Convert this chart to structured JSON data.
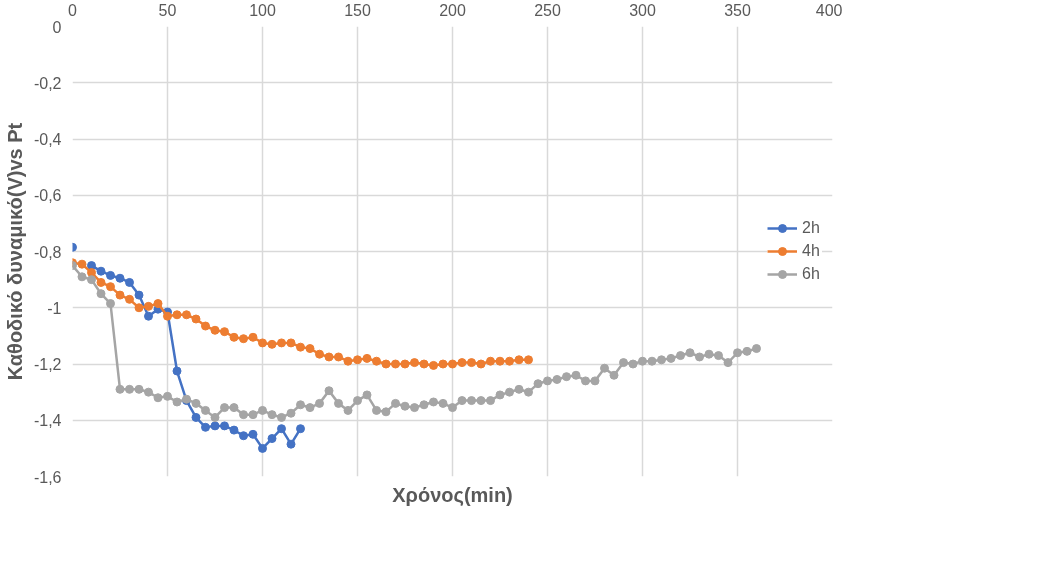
{
  "chart_data": {
    "type": "line",
    "xlabel": "Χρόνος(min)",
    "ylabel": "Καθοδικό δυναμικό(V)vs Pt",
    "xlim": [
      0,
      400
    ],
    "xticks": [
      0,
      50,
      100,
      150,
      200,
      250,
      300,
      350,
      400
    ],
    "ylim": [
      -1.6,
      0
    ],
    "yticks": [
      {
        "value": 0,
        "label": "0"
      },
      {
        "value": -0.2,
        "label": "-0,2"
      },
      {
        "value": -0.4,
        "label": "-0,4"
      },
      {
        "value": -0.6,
        "label": "-0,6"
      },
      {
        "value": -0.8,
        "label": "-0,8"
      },
      {
        "value": -1,
        "label": "-1"
      },
      {
        "value": -1.2,
        "label": "-1,2"
      },
      {
        "value": -1.4,
        "label": "-1,4"
      },
      {
        "value": -1.6,
        "label": "-1,6"
      }
    ],
    "grid": true,
    "legend": "right",
    "marker": "circle",
    "line_style": "solid",
    "series": [
      {
        "name": "2h",
        "color": "#4472c4",
        "x": [
          0,
          5,
          10,
          15,
          20,
          25,
          30,
          35,
          40,
          45,
          50,
          55,
          60,
          65,
          70,
          75,
          80,
          85,
          90,
          95,
          100,
          105,
          110,
          115,
          120
        ],
        "values": [
          -0.785,
          null,
          -0.85,
          -0.87,
          -0.885,
          -0.895,
          -0.91,
          -0.955,
          -1.03,
          -1.005,
          -1.015,
          -1.225,
          -1.33,
          -1.39,
          -1.425,
          -1.42,
          -1.42,
          -1.435,
          -1.455,
          -1.45,
          -1.5,
          -1.465,
          -1.43,
          -1.485,
          -1.43
        ]
      },
      {
        "name": "4h",
        "color": "#ed7d31",
        "x": [
          0,
          5,
          10,
          15,
          20,
          25,
          30,
          35,
          40,
          45,
          50,
          55,
          60,
          65,
          70,
          75,
          80,
          85,
          90,
          95,
          100,
          105,
          110,
          115,
          120,
          125,
          130,
          135,
          140,
          145,
          150,
          155,
          160,
          165,
          170,
          175,
          180,
          185,
          190,
          195,
          200,
          205,
          210,
          215,
          220,
          225,
          230,
          235,
          240
        ],
        "values": [
          -0.84,
          -0.845,
          -0.875,
          -0.91,
          -0.925,
          -0.955,
          -0.97,
          -1.0,
          -0.995,
          -0.985,
          -1.03,
          -1.025,
          -1.025,
          -1.04,
          -1.065,
          -1.08,
          -1.085,
          -1.105,
          -1.11,
          -1.105,
          -1.125,
          -1.13,
          -1.125,
          -1.125,
          -1.14,
          -1.145,
          -1.165,
          -1.175,
          -1.175,
          -1.19,
          -1.185,
          -1.18,
          -1.19,
          -1.2,
          -1.2,
          -1.2,
          -1.195,
          -1.2,
          -1.205,
          -1.2,
          -1.2,
          -1.195,
          -1.195,
          -1.2,
          -1.19,
          -1.19,
          -1.19,
          -1.185,
          -1.185
        ]
      },
      {
        "name": "6h",
        "color": "#a5a5a5",
        "x": [
          0,
          5,
          10,
          15,
          20,
          25,
          30,
          35,
          40,
          45,
          50,
          55,
          60,
          65,
          70,
          75,
          80,
          85,
          90,
          95,
          100,
          105,
          110,
          115,
          120,
          125,
          130,
          135,
          140,
          145,
          150,
          155,
          160,
          165,
          170,
          175,
          180,
          185,
          190,
          195,
          200,
          205,
          210,
          215,
          220,
          225,
          230,
          235,
          240,
          245,
          250,
          255,
          260,
          265,
          270,
          275,
          280,
          285,
          290,
          295,
          300,
          305,
          310,
          315,
          320,
          325,
          330,
          335,
          340,
          345,
          350,
          355,
          360
        ],
        "values": [
          -0.85,
          -0.89,
          -0.9,
          -0.95,
          -0.985,
          -1.29,
          -1.29,
          -1.29,
          -1.3,
          -1.32,
          -1.315,
          -1.335,
          -1.325,
          -1.34,
          -1.365,
          -1.39,
          -1.355,
          -1.355,
          -1.38,
          -1.38,
          -1.365,
          -1.38,
          -1.39,
          -1.375,
          -1.345,
          -1.355,
          -1.34,
          -1.295,
          -1.34,
          -1.365,
          -1.33,
          -1.31,
          -1.365,
          -1.37,
          -1.34,
          -1.35,
          -1.355,
          -1.345,
          -1.335,
          -1.34,
          -1.355,
          -1.33,
          -1.33,
          -1.33,
          -1.33,
          -1.31,
          -1.3,
          -1.29,
          -1.3,
          -1.27,
          -1.26,
          -1.255,
          -1.245,
          -1.24,
          -1.26,
          -1.26,
          -1.215,
          -1.24,
          -1.195,
          -1.2,
          -1.19,
          -1.19,
          -1.185,
          -1.18,
          -1.17,
          -1.16,
          -1.175,
          -1.165,
          -1.17,
          -1.195,
          -1.16,
          -1.155,
          -1.145
        ]
      }
    ]
  }
}
